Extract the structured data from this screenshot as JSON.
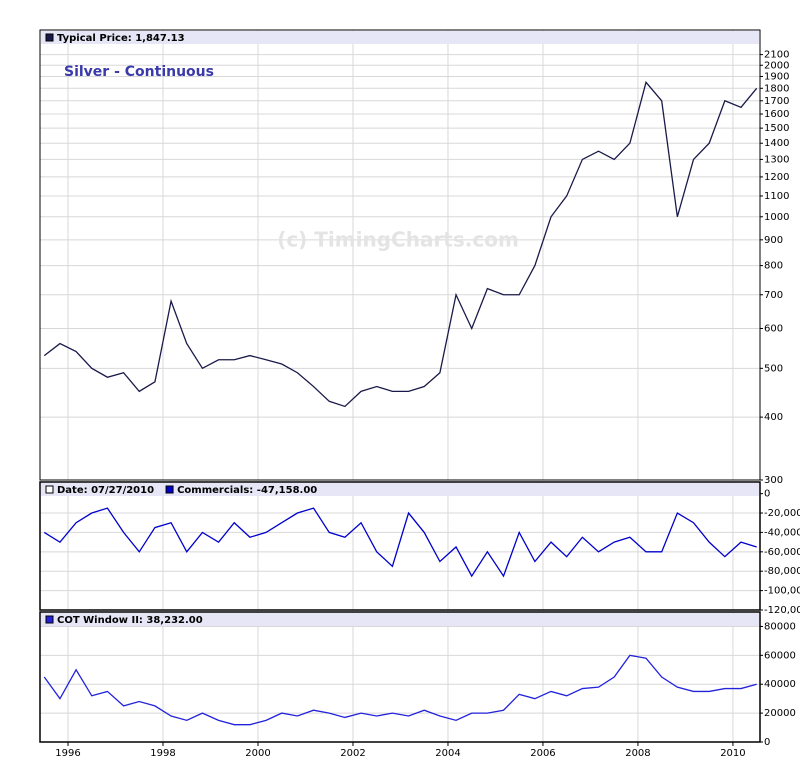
{
  "chart_data": [
    {
      "type": "line",
      "title": "Silver - Continuous",
      "watermark": "(c) TimingCharts.com",
      "log_y": true,
      "grid": true,
      "x": [
        1995.5,
        1995.83,
        1996.17,
        1996.5,
        1996.83,
        1997.17,
        1997.5,
        1997.83,
        1998.17,
        1998.5,
        1998.83,
        1999.17,
        1999.5,
        1999.83,
        2000.17,
        2000.5,
        2000.83,
        2001.17,
        2001.5,
        2001.83,
        2002.17,
        2002.5,
        2002.83,
        2003.17,
        2003.5,
        2003.83,
        2004.17,
        2004.5,
        2004.83,
        2005.17,
        2005.5,
        2005.83,
        2006.17,
        2006.5,
        2006.83,
        2007.17,
        2007.5,
        2007.83,
        2008.17,
        2008.5,
        2008.83,
        2009.17,
        2009.5,
        2009.83,
        2010.17,
        2010.5
      ],
      "xlim": [
        1995.41,
        2010.57
      ],
      "ylim": [
        300,
        2350
      ],
      "yticks": [
        300,
        400,
        500,
        600,
        700,
        800,
        900,
        1000,
        1100,
        1200,
        1300,
        1400,
        1500,
        1600,
        1700,
        1800,
        1900,
        2000,
        2100
      ],
      "series": [
        {
          "name": "Typical Price: 1,847.13",
          "color": "#1a1a4a",
          "values": [
            530,
            560,
            540,
            500,
            480,
            490,
            450,
            470,
            680,
            560,
            500,
            520,
            520,
            530,
            520,
            510,
            490,
            460,
            430,
            420,
            450,
            460,
            450,
            450,
            460,
            490,
            700,
            600,
            720,
            700,
            700,
            800,
            1000,
            1100,
            1300,
            1350,
            1300,
            1400,
            1850,
            1700,
            1000,
            1300,
            1400,
            1700,
            1650,
            1800
          ]
        }
      ]
    },
    {
      "type": "line",
      "date_label": "Date: 07/27/2010",
      "grid": true,
      "x": [
        1995.5,
        1995.83,
        1996.17,
        1996.5,
        1996.83,
        1997.17,
        1997.5,
        1997.83,
        1998.17,
        1998.5,
        1998.83,
        1999.17,
        1999.5,
        1999.83,
        2000.17,
        2000.5,
        2000.83,
        2001.17,
        2001.5,
        2001.83,
        2002.17,
        2002.5,
        2002.83,
        2003.17,
        2003.5,
        2003.83,
        2004.17,
        2004.5,
        2004.83,
        2005.17,
        2005.5,
        2005.83,
        2006.17,
        2006.5,
        2006.83,
        2007.17,
        2007.5,
        2007.83,
        2008.17,
        2008.5,
        2008.83,
        2009.17,
        2009.5,
        2009.83,
        2010.17,
        2010.5
      ],
      "xlim": [
        1995.41,
        2010.57
      ],
      "ylim": [
        -120000,
        12000
      ],
      "yticks": [
        0,
        {
          "value": -20000,
          "label": "-20,000"
        },
        {
          "value": -40000,
          "label": "-40,000"
        },
        {
          "value": -60000,
          "label": "-60,000"
        },
        {
          "value": -80000,
          "label": "-80,000"
        },
        {
          "value": -100000,
          "label": "-100,000"
        },
        {
          "value": -120000,
          "label": "-120,000"
        }
      ],
      "series": [
        {
          "name": "Commercials: -47,158.00",
          "color": "#0000cc",
          "values": [
            -40000,
            -50000,
            -30000,
            -20000,
            -15000,
            -40000,
            -60000,
            -35000,
            -30000,
            -60000,
            -40000,
            -50000,
            -30000,
            -45000,
            -40000,
            -30000,
            -20000,
            -15000,
            -40000,
            -45000,
            -30000,
            -60000,
            -75000,
            -20000,
            -40000,
            -70000,
            -55000,
            -85000,
            -60000,
            -85000,
            -40000,
            -70000,
            -50000,
            -65000,
            -45000,
            -60000,
            -50000,
            -45000,
            -60000,
            -60000,
            -20000,
            -30000,
            -50000,
            -65000,
            -50000,
            -55000
          ]
        }
      ]
    },
    {
      "type": "line",
      "grid": true,
      "x": [
        1995.5,
        1995.83,
        1996.17,
        1996.5,
        1996.83,
        1997.17,
        1997.5,
        1997.83,
        1998.17,
        1998.5,
        1998.83,
        1999.17,
        1999.5,
        1999.83,
        2000.17,
        2000.5,
        2000.83,
        2001.17,
        2001.5,
        2001.83,
        2002.17,
        2002.5,
        2002.83,
        2003.17,
        2003.5,
        2003.83,
        2004.17,
        2004.5,
        2004.83,
        2005.17,
        2005.5,
        2005.83,
        2006.17,
        2006.5,
        2006.83,
        2007.17,
        2007.5,
        2007.83,
        2008.17,
        2008.5,
        2008.83,
        2009.17,
        2009.5,
        2009.83,
        2010.17,
        2010.5
      ],
      "xlim": [
        1995.41,
        2010.57
      ],
      "xticks": [
        1996,
        1998,
        2000,
        2002,
        2004,
        2006,
        2008,
        2010
      ],
      "ylim": [
        0,
        90000
      ],
      "yticks": [
        0,
        20000,
        40000,
        60000,
        80000
      ],
      "series": [
        {
          "name": "COT Window II: 38,232.00",
          "color": "#2222dd",
          "values": [
            45000,
            30000,
            50000,
            32000,
            35000,
            25000,
            28000,
            25000,
            18000,
            15000,
            20000,
            15000,
            12000,
            12000,
            15000,
            20000,
            18000,
            22000,
            20000,
            17000,
            20000,
            18000,
            20000,
            18000,
            22000,
            18000,
            15000,
            20000,
            20000,
            22000,
            33000,
            30000,
            35000,
            32000,
            37000,
            38000,
            45000,
            60000,
            58000,
            45000,
            38000,
            35000,
            35000,
            37000,
            37000,
            40000
          ]
        }
      ]
    }
  ]
}
